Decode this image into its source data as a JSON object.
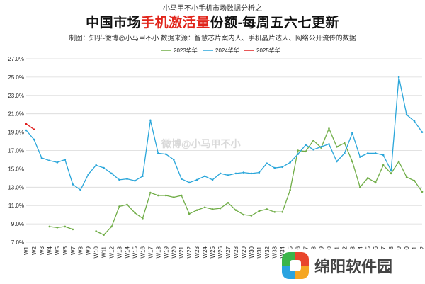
{
  "header": {
    "supertitle": "小马甲不小手机市场数据分析之",
    "title_pre": "中国市场",
    "title_highlight": "手机激活量",
    "title_post": "份额-每周五六七更新",
    "credit": "制图：知乎-微博@小马甲不小   数据来源：智慧芯片案内人、手机晶片达人、网络公开流传的数据"
  },
  "watermark": "微博@小马甲不小",
  "logo": {
    "name": "绵阳软件园"
  },
  "colors": {
    "s2023": "#70ad47",
    "s2024": "#2aa6da",
    "s2025": "#e02020",
    "grid": "#d9d9d9"
  },
  "chart_data": {
    "type": "line",
    "y_unit": "%",
    "ylim": [
      7.0,
      27.0
    ],
    "yticks": [
      "7.0%",
      "9.0%",
      "11.0%",
      "13.0%",
      "15.0%",
      "17.0%",
      "19.0%",
      "21.0%",
      "23.0%",
      "25.0%",
      "27.0%"
    ],
    "grid": true,
    "legend_position": "top-center",
    "x": [
      "W1",
      "W2",
      "W3",
      "W4",
      "W5",
      "W6",
      "W7",
      "W8",
      "W9",
      "W10",
      "W11",
      "W12",
      "W13",
      "W14",
      "W15",
      "W16",
      "W17",
      "W18",
      "W19",
      "W20",
      "W21",
      "W22",
      "W23",
      "W24",
      "W25",
      "W26",
      "W27",
      "W28",
      "W29",
      "W30",
      "W31",
      "W32",
      "W33",
      "W34",
      "5",
      "6",
      "7",
      "8",
      "9",
      "0",
      "1",
      "2",
      "3",
      "4",
      "5",
      "6",
      "7",
      "8",
      "9",
      "0",
      "1",
      "2"
    ],
    "series": [
      {
        "name": "2023华华",
        "color": "#70ad47",
        "values": [
          null,
          null,
          null,
          8.7,
          8.6,
          8.7,
          8.4,
          null,
          null,
          8.2,
          7.8,
          8.7,
          10.9,
          11.1,
          10.2,
          9.6,
          12.4,
          12.1,
          12.1,
          11.9,
          12.1,
          10.1,
          10.5,
          10.8,
          10.6,
          10.7,
          11.3,
          10.5,
          10.0,
          9.9,
          10.4,
          10.6,
          10.3,
          10.3,
          12.7,
          17.0,
          16.9,
          18.1,
          17.3,
          19.4,
          17.4,
          17.8,
          15.8,
          13.0,
          14.0,
          13.5,
          15.4,
          14.5,
          15.8,
          14.1,
          13.7,
          12.5
        ]
      },
      {
        "name": "2024华华",
        "color": "#2aa6da",
        "values": [
          19.2,
          18.2,
          16.2,
          15.9,
          15.7,
          16.0,
          13.3,
          12.7,
          14.4,
          15.4,
          15.1,
          14.5,
          13.8,
          13.9,
          13.7,
          14.2,
          20.3,
          16.7,
          16.6,
          16.0,
          13.9,
          13.5,
          13.8,
          14.2,
          13.8,
          14.5,
          14.3,
          14.5,
          14.6,
          14.5,
          14.6,
          15.6,
          15.1,
          15.2,
          15.7,
          16.6,
          17.6,
          17.1,
          17.4,
          17.7,
          15.8,
          16.7,
          18.9,
          16.3,
          16.7,
          16.7,
          16.5,
          14.8,
          25.0,
          20.9,
          20.2,
          19.0
        ]
      },
      {
        "name": "2025华华",
        "color": "#e02020",
        "values": [
          19.9,
          19.3,
          null,
          null,
          null,
          null,
          null,
          null,
          null,
          null,
          null,
          null,
          null,
          null,
          null,
          null,
          null,
          null,
          null,
          null,
          null,
          null,
          null,
          null,
          null,
          null,
          null,
          null,
          null,
          null,
          null,
          null,
          null,
          null,
          null,
          null,
          null,
          null,
          null,
          null,
          null,
          null,
          null,
          null,
          null,
          null,
          null,
          null,
          null,
          null,
          null,
          null
        ]
      }
    ]
  }
}
